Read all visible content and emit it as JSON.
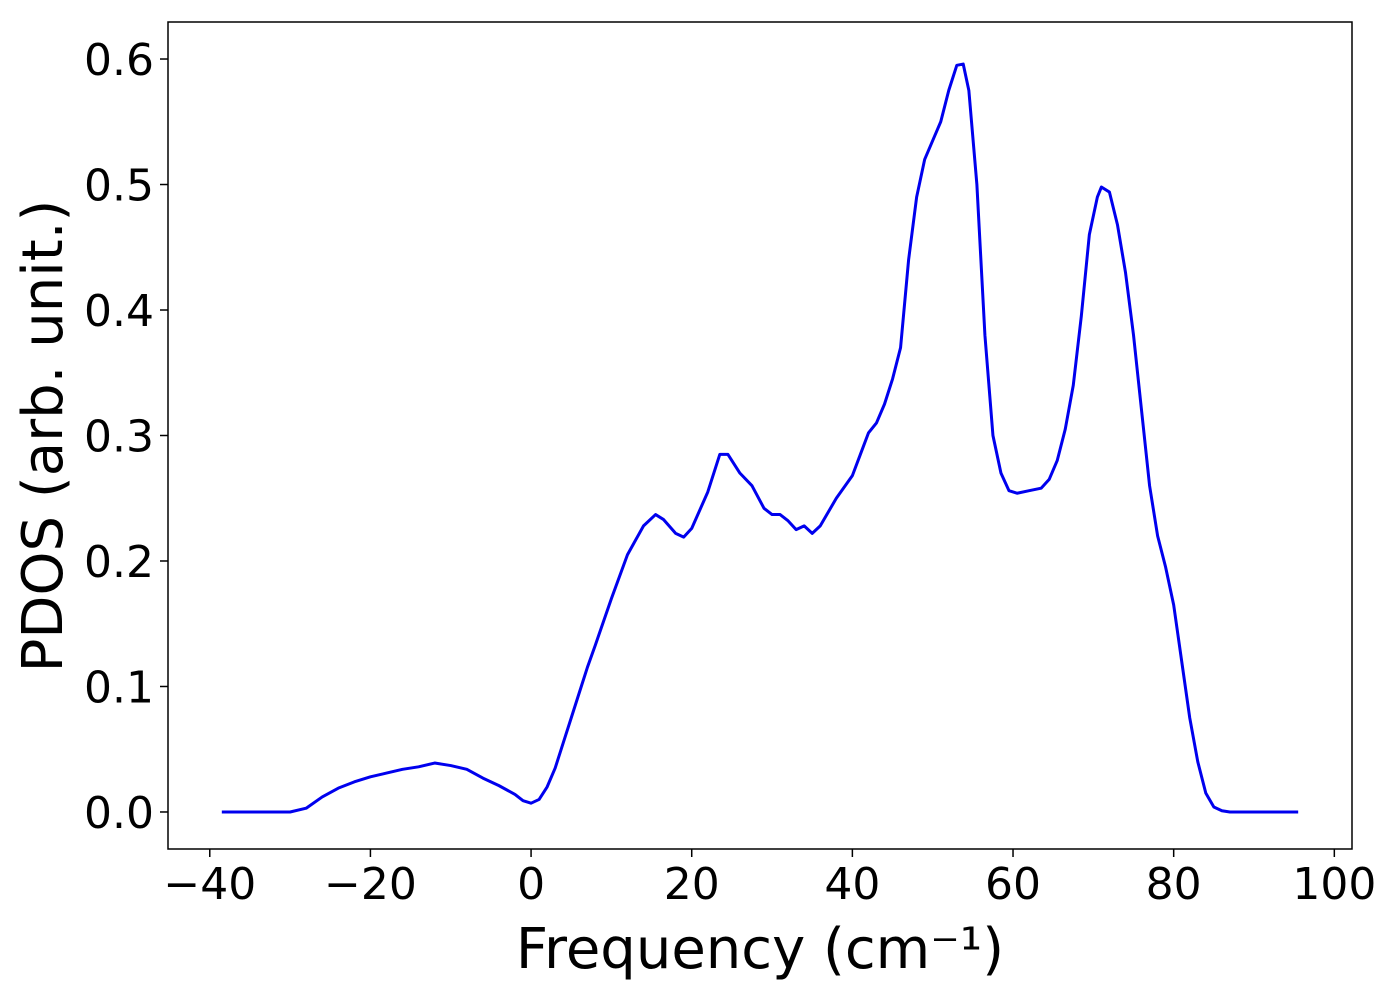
{
  "chart_data": {
    "type": "line",
    "xlabel": "Frequency (cm⁻¹)",
    "ylabel": "PDOS (arb. unit.)",
    "xlim": [
      -45.2,
      102.2
    ],
    "ylim": [
      -0.0295,
      0.6295
    ],
    "xticks": [
      {
        "value": -40,
        "label": "−40"
      },
      {
        "value": -20,
        "label": "−20"
      },
      0,
      20,
      40,
      60,
      80,
      100
    ],
    "yticks": [
      {
        "value": 0,
        "label": "0.0"
      },
      0.1,
      0.2,
      0.3,
      0.4,
      0.5,
      0.6
    ],
    "grid": false,
    "series": [
      {
        "color": "#0000ee",
        "x": [
          -38.5,
          -30,
          -28,
          -26,
          -24,
          -22,
          -20,
          -18,
          -16,
          -14,
          -12,
          -10,
          -8,
          -6,
          -4,
          -2,
          -1,
          0,
          1,
          2,
          3,
          4,
          5,
          6,
          7,
          8,
          10,
          12,
          14,
          15.5,
          16.5,
          18,
          19,
          20,
          22,
          23.5,
          24.5,
          26,
          27.5,
          29,
          30,
          31,
          32,
          33,
          34,
          35,
          36,
          38,
          40,
          41,
          42,
          43,
          44,
          45,
          46,
          47,
          48,
          49,
          50,
          51,
          52,
          53,
          53.8,
          54.5,
          55.5,
          56.5,
          57.5,
          58.5,
          59.5,
          60.5,
          62,
          63.5,
          64.5,
          65.5,
          66.5,
          67.5,
          68.5,
          69.5,
          70.5,
          71,
          72,
          73,
          74,
          75,
          76,
          77,
          78,
          79,
          80,
          81,
          82,
          83,
          84,
          85,
          86,
          87,
          95.5
        ],
        "values": [
          0,
          0,
          0.003,
          0.012,
          0.019,
          0.024,
          0.028,
          0.031,
          0.034,
          0.036,
          0.039,
          0.037,
          0.034,
          0.027,
          0.021,
          0.014,
          0.009,
          0.007,
          0.01,
          0.02,
          0.035,
          0.055,
          0.075,
          0.095,
          0.115,
          0.133,
          0.17,
          0.205,
          0.228,
          0.237,
          0.233,
          0.222,
          0.219,
          0.226,
          0.255,
          0.285,
          0.285,
          0.27,
          0.26,
          0.242,
          0.237,
          0.237,
          0.232,
          0.225,
          0.228,
          0.222,
          0.228,
          0.25,
          0.268,
          0.285,
          0.302,
          0.31,
          0.325,
          0.345,
          0.37,
          0.44,
          0.49,
          0.52,
          0.535,
          0.55,
          0.575,
          0.595,
          0.596,
          0.575,
          0.5,
          0.38,
          0.3,
          0.27,
          0.256,
          0.254,
          0.256,
          0.258,
          0.265,
          0.28,
          0.305,
          0.34,
          0.395,
          0.46,
          0.49,
          0.498,
          0.494,
          0.468,
          0.43,
          0.38,
          0.32,
          0.26,
          0.22,
          0.195,
          0.165,
          0.12,
          0.075,
          0.04,
          0.015,
          0.004,
          0.001,
          0,
          0
        ]
      }
    ]
  }
}
